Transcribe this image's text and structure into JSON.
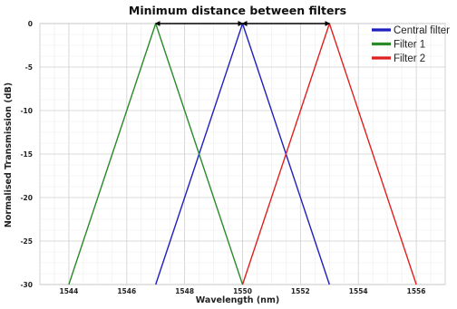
{
  "chart_data": {
    "type": "line",
    "title": "Minimum distance between filters",
    "xlabel": "Wavelength (nm)",
    "ylabel": "Normalised Transmission (dB)",
    "xlim": [
      1543,
      1557
    ],
    "ylim": [
      -30,
      0
    ],
    "x_ticks": [
      1544,
      1546,
      1548,
      1550,
      1552,
      1554,
      1556
    ],
    "y_ticks": [
      0,
      -5,
      -10,
      -15,
      -20,
      -25,
      -30
    ],
    "y_tick_labels": [
      "0",
      "-5",
      "-10",
      "-15",
      "-20",
      "-25",
      "-30"
    ],
    "grid": true,
    "legend_position": "top-right",
    "series": [
      {
        "name": "Central filter",
        "color": "#1f1fbf",
        "x": [
          1547.0,
          1550.0,
          1553.0
        ],
        "y": [
          -30,
          0,
          -30
        ]
      },
      {
        "name": "Filter 1",
        "color": "#2a8a2a",
        "x": [
          1544.0,
          1547.0,
          1550.0
        ],
        "y": [
          -30,
          0,
          -30
        ]
      },
      {
        "name": "Filter 2",
        "color": "#e02020",
        "x": [
          1550.0,
          1553.0,
          1556.0
        ],
        "y": [
          -30,
          0,
          -30
        ]
      }
    ],
    "annotations": [
      {
        "type": "double-arrow",
        "x_start": 1547.0,
        "x_end": 1550.0,
        "y": 0,
        "color": "#000000"
      },
      {
        "type": "double-arrow",
        "x_start": 1550.0,
        "x_end": 1553.0,
        "y": 0,
        "color": "#000000"
      }
    ]
  }
}
